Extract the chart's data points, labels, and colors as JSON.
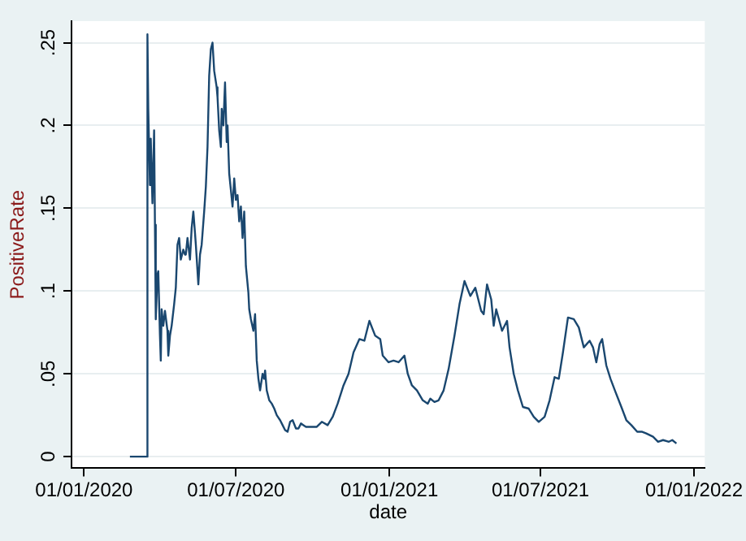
{
  "chart_data": {
    "type": "line",
    "xlabel": "date",
    "ylabel": "PositiveRate",
    "xlim": [
      "2019-12-17",
      "2022-01-14"
    ],
    "xticks": [
      {
        "value": "2020-01-01",
        "label": "01/01/2020"
      },
      {
        "value": "2020-07-01",
        "label": "01/07/2020"
      },
      {
        "value": "2021-01-01",
        "label": "01/01/2021"
      },
      {
        "value": "2021-07-01",
        "label": "01/07/2021"
      },
      {
        "value": "2022-01-01",
        "label": "01/01/2022"
      }
    ],
    "ylim": [
      -0.007,
      0.263
    ],
    "yticks": [
      0,
      {
        "value": 0.05,
        "label": ".05"
      },
      {
        "value": 0.1,
        "label": ".1"
      },
      {
        "value": 0.15,
        "label": ".15"
      },
      {
        "value": 0.2,
        "label": ".2"
      },
      {
        "value": 0.25,
        "label": ".25"
      }
    ],
    "grid": "y",
    "legend": false,
    "marker": "none",
    "line_style": "solid",
    "series": [
      {
        "color": "#1a476f",
        "x": [
          "2020-02-25",
          "2020-03-16",
          "2020-03-17",
          "2020-03-18",
          "2020-03-20",
          "2020-03-21",
          "2020-03-23",
          "2020-03-25",
          "2020-03-26",
          "2020-03-27",
          "2020-03-29",
          "2020-03-30",
          "2020-04-01",
          "2020-04-02",
          "2020-04-03",
          "2020-04-05",
          "2020-04-07",
          "2020-04-10",
          "2020-04-11",
          "2020-04-13",
          "2020-04-15",
          "2020-04-18",
          "2020-04-20",
          "2020-04-22",
          "2020-04-24",
          "2020-04-26",
          "2020-04-29",
          "2020-05-01",
          "2020-05-02",
          "2020-05-04",
          "2020-05-07",
          "2020-05-09",
          "2020-05-11",
          "2020-05-13",
          "2020-05-14",
          "2020-05-17",
          "2020-05-19",
          "2020-05-21",
          "2020-05-24",
          "2020-05-26",
          "2020-05-28",
          "2020-05-30",
          "2020-06-01",
          "2020-06-03",
          "2020-06-05",
          "2020-06-08",
          "2020-06-09",
          "2020-06-11",
          "2020-06-13",
          "2020-06-14",
          "2020-06-16",
          "2020-06-18",
          "2020-06-20",
          "2020-06-21",
          "2020-06-23",
          "2020-06-25",
          "2020-06-27",
          "2020-06-29",
          "2020-07-01",
          "2020-07-03",
          "2020-07-05",
          "2020-07-07",
          "2020-07-09",
          "2020-07-11",
          "2020-07-13",
          "2020-07-16",
          "2020-07-17",
          "2020-07-19",
          "2020-07-22",
          "2020-07-24",
          "2020-07-26",
          "2020-07-28",
          "2020-07-30",
          "2020-08-02",
          "2020-08-04",
          "2020-08-05",
          "2020-08-07",
          "2020-08-10",
          "2020-08-13",
          "2020-08-16",
          "2020-08-19",
          "2020-08-23",
          "2020-08-26",
          "2020-08-29",
          "2020-09-01",
          "2020-09-04",
          "2020-09-07",
          "2020-09-11",
          "2020-09-14",
          "2020-09-17",
          "2020-09-20",
          "2020-09-23",
          "2020-09-30",
          "2020-10-06",
          "2020-10-12",
          "2020-10-19",
          "2020-10-25",
          "2020-10-31",
          "2020-11-07",
          "2020-11-13",
          "2020-11-19",
          "2020-11-26",
          "2020-12-02",
          "2020-12-08",
          "2020-12-15",
          "2020-12-21",
          "2020-12-24",
          "2020-12-31",
          "2021-01-06",
          "2021-01-12",
          "2021-01-19",
          "2021-01-23",
          "2021-01-28",
          "2021-02-03",
          "2021-02-10",
          "2021-02-16",
          "2021-02-19",
          "2021-02-24",
          "2021-03-01",
          "2021-03-07",
          "2021-03-13",
          "2021-03-20",
          "2021-03-26",
          "2021-04-01",
          "2021-04-08",
          "2021-04-14",
          "2021-04-21",
          "2021-04-24",
          "2021-04-28",
          "2021-05-03",
          "2021-05-06",
          "2021-05-09",
          "2021-05-16",
          "2021-05-22",
          "2021-05-25",
          "2021-05-30",
          "2021-06-04",
          "2021-06-10",
          "2021-06-17",
          "2021-06-23",
          "2021-06-29",
          "2021-07-06",
          "2021-07-12",
          "2021-07-18",
          "2021-07-23",
          "2021-07-28",
          "2021-08-03",
          "2021-08-10",
          "2021-08-16",
          "2021-08-22",
          "2021-08-29",
          "2021-09-02",
          "2021-09-06",
          "2021-09-10",
          "2021-09-13",
          "2021-09-18",
          "2021-09-23",
          "2021-09-29",
          "2021-10-06",
          "2021-10-12",
          "2021-10-18",
          "2021-10-25",
          "2021-10-31",
          "2021-11-05",
          "2021-11-13",
          "2021-11-19",
          "2021-11-25",
          "2021-12-02",
          "2021-12-06",
          "2021-12-11"
        ],
        "values": [
          0,
          0,
          0.255,
          0.21,
          0.164,
          0.192,
          0.153,
          0.197,
          0.14,
          0.083,
          0.11,
          0.112,
          0.073,
          0.058,
          0.089,
          0.079,
          0.088,
          0.076,
          0.061,
          0.073,
          0.079,
          0.092,
          0.102,
          0.128,
          0.132,
          0.119,
          0.125,
          0.122,
          0.122,
          0.132,
          0.119,
          0.138,
          0.148,
          0.135,
          0.128,
          0.104,
          0.122,
          0.128,
          0.148,
          0.163,
          0.187,
          0.23,
          0.246,
          0.25,
          0.233,
          0.223,
          0.217,
          0.197,
          0.187,
          0.21,
          0.2,
          0.226,
          0.19,
          0.2,
          0.171,
          0.161,
          0.151,
          0.168,
          0.155,
          0.158,
          0.142,
          0.151,
          0.132,
          0.148,
          0.115,
          0.099,
          0.089,
          0.083,
          0.076,
          0.086,
          0.058,
          0.047,
          0.04,
          0.05,
          0.047,
          0.052,
          0.04,
          0.034,
          0.032,
          0.029,
          0.025,
          0.022,
          0.019,
          0.016,
          0.015,
          0.021,
          0.022,
          0.017,
          0.017,
          0.02,
          0.019,
          0.018,
          0.018,
          0.018,
          0.021,
          0.019,
          0.024,
          0.032,
          0.043,
          0.05,
          0.063,
          0.071,
          0.07,
          0.082,
          0.073,
          0.071,
          0.061,
          0.057,
          0.058,
          0.057,
          0.061,
          0.05,
          0.043,
          0.04,
          0.034,
          0.032,
          0.035,
          0.033,
          0.034,
          0.04,
          0.053,
          0.073,
          0.092,
          0.106,
          0.097,
          0.102,
          0.088,
          0.086,
          0.104,
          0.095,
          0.079,
          0.089,
          0.076,
          0.082,
          0.066,
          0.05,
          0.04,
          0.03,
          0.029,
          0.024,
          0.021,
          0.024,
          0.034,
          0.048,
          0.047,
          0.063,
          0.084,
          0.083,
          0.078,
          0.066,
          0.07,
          0.066,
          0.057,
          0.068,
          0.071,
          0.055,
          0.047,
          0.039,
          0.03,
          0.022,
          0.019,
          0.015,
          0.015,
          0.014,
          0.012,
          0.009,
          0.01,
          0.009,
          0.01,
          0.008
        ]
      }
    ]
  }
}
